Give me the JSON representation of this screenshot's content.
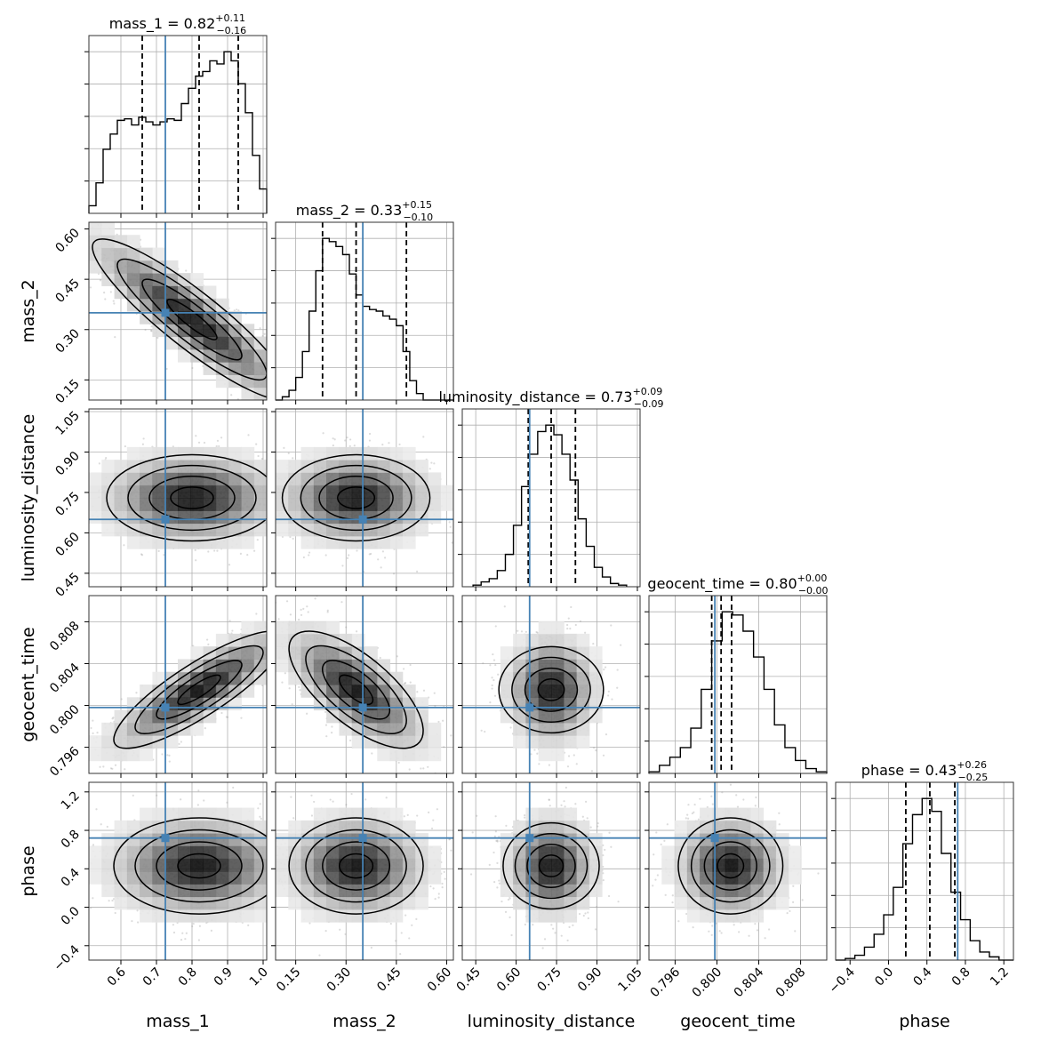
{
  "chart_data": {
    "type": "corner",
    "parameters": [
      {
        "name": "mass_1",
        "axis_label": "mass_1",
        "title_prefix": "mass_1 = ",
        "median": "0.82",
        "plus": "+0.11",
        "minus": "−0.16",
        "range": [
          0.51,
          1.01
        ],
        "ticks": [
          0.6,
          0.7,
          0.8,
          0.9,
          1.0
        ],
        "tick_labels": [
          "0.6",
          "0.7",
          "0.8",
          "0.9",
          "1.0"
        ],
        "truth": 0.725,
        "quantiles": [
          0.66,
          0.82,
          0.93
        ],
        "hist_bins": [
          0.51,
          0.53,
          0.55,
          0.57,
          0.59,
          0.61,
          0.63,
          0.65,
          0.67,
          0.69,
          0.71,
          0.73,
          0.75,
          0.77,
          0.79,
          0.81,
          0.83,
          0.85,
          0.87,
          0.89,
          0.91,
          0.93,
          0.95,
          0.97,
          0.99,
          1.01
        ],
        "hist_counts": [
          0.05,
          0.2,
          0.42,
          0.52,
          0.61,
          0.62,
          0.58,
          0.63,
          0.6,
          0.58,
          0.6,
          0.62,
          0.61,
          0.72,
          0.82,
          0.9,
          0.93,
          1.0,
          0.98,
          1.06,
          1.0,
          0.85,
          0.66,
          0.38,
          0.16
        ]
      },
      {
        "name": "mass_2",
        "axis_label": "mass_2",
        "title_prefix": "mass_2 = ",
        "median": "0.33",
        "plus": "+0.15",
        "minus": "−0.10",
        "range": [
          0.09,
          0.62
        ],
        "ticks": [
          0.15,
          0.3,
          0.45,
          0.6
        ],
        "tick_labels": [
          "0.15",
          "0.30",
          "0.45",
          "0.60"
        ],
        "truth": 0.35,
        "quantiles": [
          0.23,
          0.33,
          0.48
        ],
        "hist_bins": [
          0.09,
          0.11,
          0.13,
          0.15,
          0.17,
          0.19,
          0.21,
          0.23,
          0.25,
          0.27,
          0.29,
          0.31,
          0.33,
          0.35,
          0.37,
          0.39,
          0.41,
          0.43,
          0.45,
          0.47,
          0.49,
          0.51,
          0.53,
          0.55,
          0.57,
          0.59,
          0.62
        ],
        "hist_counts": [
          0.0,
          0.02,
          0.06,
          0.14,
          0.3,
          0.55,
          0.8,
          1.0,
          0.98,
          0.95,
          0.9,
          0.78,
          0.65,
          0.58,
          0.56,
          0.55,
          0.52,
          0.5,
          0.46,
          0.3,
          0.12,
          0.04,
          0.0,
          0.0,
          0.0,
          0.0
        ]
      },
      {
        "name": "luminosity_distance",
        "axis_label": "luminosity_distance",
        "title_prefix": "luminosity_distance = ",
        "median": "0.73",
        "plus": "+0.09",
        "minus": "−0.09",
        "range": [
          0.4,
          1.06
        ],
        "ticks": [
          0.45,
          0.6,
          0.75,
          0.9,
          1.05
        ],
        "tick_labels": [
          "0.45",
          "0.60",
          "0.75",
          "0.90",
          "1.05"
        ],
        "truth": 0.65,
        "quantiles": [
          0.645,
          0.73,
          0.82
        ],
        "hist_bins": [
          0.44,
          0.47,
          0.5,
          0.53,
          0.56,
          0.59,
          0.62,
          0.65,
          0.68,
          0.71,
          0.74,
          0.77,
          0.8,
          0.83,
          0.86,
          0.89,
          0.92,
          0.95,
          0.98,
          1.01
        ],
        "hist_counts": [
          0.01,
          0.03,
          0.05,
          0.1,
          0.2,
          0.38,
          0.62,
          0.82,
          0.96,
          1.0,
          0.94,
          0.82,
          0.66,
          0.42,
          0.25,
          0.12,
          0.06,
          0.02,
          0.01
        ]
      },
      {
        "name": "geocent_time",
        "axis_label": "geocent_time",
        "title_prefix": "geocent_time = ",
        "median": "0.80",
        "plus": "+0.00",
        "minus": "−0.00",
        "range": [
          0.7935,
          0.8105
        ],
        "ticks": [
          0.796,
          0.8,
          0.804,
          0.808
        ],
        "tick_labels": [
          "0.796",
          "0.800",
          "0.804",
          "0.808"
        ],
        "truth": 0.7998,
        "quantiles": [
          0.7995,
          0.8004,
          0.8014
        ],
        "hist_bins": [
          0.7935,
          0.7945,
          0.7955,
          0.7965,
          0.7975,
          0.7985,
          0.7995,
          0.8005,
          0.8015,
          0.8025,
          0.8035,
          0.8045,
          0.8055,
          0.8065,
          0.8075,
          0.8085,
          0.8095,
          0.8105
        ],
        "hist_counts": [
          0.01,
          0.05,
          0.1,
          0.16,
          0.28,
          0.52,
          0.82,
          1.0,
          0.98,
          0.88,
          0.72,
          0.52,
          0.3,
          0.16,
          0.08,
          0.03,
          0.01
        ]
      },
      {
        "name": "phase",
        "axis_label": "phase",
        "title_prefix": "phase = ",
        "median": "0.43",
        "plus": "+0.26",
        "minus": "−0.25",
        "range": [
          -0.55,
          1.3
        ],
        "ticks": [
          -0.4,
          0.0,
          0.4,
          0.8,
          1.2
        ],
        "tick_labels": [
          "−0.4",
          "0.0",
          "0.4",
          "0.8",
          "1.2"
        ],
        "truth": 0.72,
        "quantiles": [
          0.18,
          0.43,
          0.69
        ],
        "hist_bins": [
          -0.55,
          -0.45,
          -0.35,
          -0.25,
          -0.15,
          -0.05,
          0.05,
          0.15,
          0.25,
          0.35,
          0.45,
          0.55,
          0.65,
          0.75,
          0.85,
          0.95,
          1.05,
          1.15,
          1.25,
          1.3
        ],
        "hist_counts": [
          0.0,
          0.01,
          0.03,
          0.08,
          0.16,
          0.28,
          0.45,
          0.72,
          0.9,
          1.0,
          0.92,
          0.66,
          0.42,
          0.25,
          0.12,
          0.05,
          0.02,
          0.0,
          0.0
        ]
      }
    ],
    "pairs": [
      {
        "x": 0,
        "y": 1,
        "center": [
          0.8,
          0.33
        ],
        "spread": [
          0.14,
          0.12
        ],
        "corr": -0.9
      },
      {
        "x": 0,
        "y": 2,
        "center": [
          0.8,
          0.73
        ],
        "spread": [
          0.12,
          0.08
        ],
        "corr": 0.0
      },
      {
        "x": 1,
        "y": 2,
        "center": [
          0.33,
          0.73
        ],
        "spread": [
          0.11,
          0.08
        ],
        "corr": 0.0
      },
      {
        "x": 0,
        "y": 3,
        "center": [
          0.82,
          0.8015
        ],
        "spread": [
          0.12,
          0.0028
        ],
        "corr": 0.85
      },
      {
        "x": 1,
        "y": 3,
        "center": [
          0.33,
          0.8015
        ],
        "spread": [
          0.1,
          0.0028
        ],
        "corr": -0.7
      },
      {
        "x": 2,
        "y": 3,
        "center": [
          0.73,
          0.8015
        ],
        "spread": [
          0.08,
          0.0025
        ],
        "corr": 0.0
      },
      {
        "x": 0,
        "y": 4,
        "center": [
          0.82,
          0.43
        ],
        "spread": [
          0.12,
          0.25
        ],
        "corr": 0.0
      },
      {
        "x": 1,
        "y": 4,
        "center": [
          0.33,
          0.43
        ],
        "spread": [
          0.1,
          0.25
        ],
        "corr": 0.0
      },
      {
        "x": 2,
        "y": 4,
        "center": [
          0.73,
          0.43
        ],
        "spread": [
          0.08,
          0.25
        ],
        "corr": 0.0
      },
      {
        "x": 3,
        "y": 4,
        "center": [
          0.8013,
          0.43
        ],
        "spread": [
          0.0025,
          0.25
        ],
        "corr": 0.0
      }
    ],
    "colors": {
      "truth": "#4682b4",
      "line": "#000000",
      "grid": "#b0b0b0",
      "points": "#9a9a9a"
    }
  }
}
